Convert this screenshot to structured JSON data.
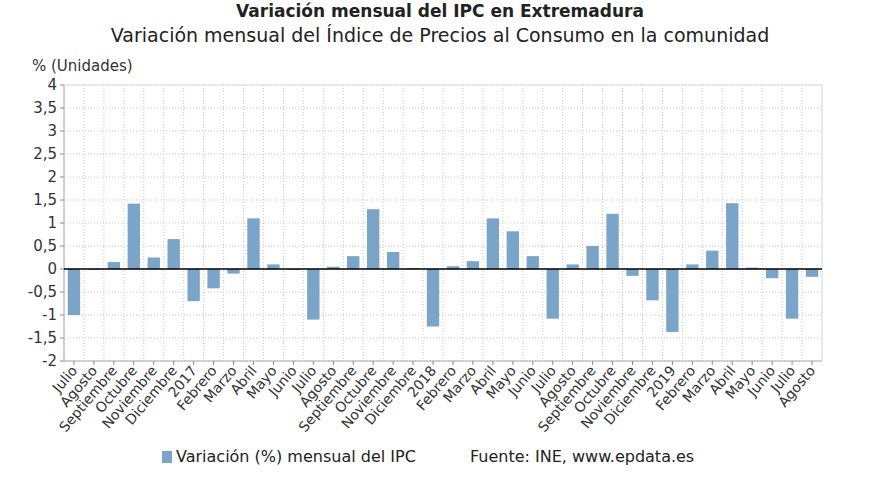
{
  "chart_data": {
    "type": "bar",
    "title": "Variación mensual del IPC en Extremadura",
    "subtitle": "Variación mensual del Índice de Precios al Consumo en la comunidad",
    "y_label": "% (Unidades)",
    "source": "Fuente: INE, www.epdata.es",
    "categories": [
      "Julio",
      "Agosto",
      "Septiembre",
      "Octubre",
      "Noviembre",
      "Diciembre",
      "2017",
      "Febrero",
      "Marzo",
      "Abril",
      "Mayo",
      "Junio",
      "Julio",
      "Agosto",
      "Septiembre",
      "Octubre",
      "Noviembre",
      "Diciembre",
      "2018",
      "Febrero",
      "Marzo",
      "Abril",
      "Mayo",
      "Junio",
      "Julio",
      "Agosto",
      "Septiembre",
      "Octubre",
      "Noviembre",
      "Diciembre",
      "2019",
      "Febrero",
      "Marzo",
      "Abril",
      "Mayo",
      "Junio",
      "Julio",
      "Agosto"
    ],
    "series": [
      {
        "name": "Variación (%) mensual del IPC",
        "color": "#7ba4c9",
        "values": [
          -1.0,
          -0.02,
          0.15,
          1.42,
          0.25,
          0.65,
          -0.7,
          -0.42,
          -0.1,
          1.1,
          0.1,
          -0.02,
          -1.1,
          0.05,
          0.28,
          1.3,
          0.37,
          0.02,
          -1.25,
          0.06,
          0.17,
          1.1,
          0.82,
          0.28,
          -1.08,
          0.1,
          0.5,
          1.2,
          -0.15,
          -0.68,
          -1.37,
          0.1,
          0.4,
          1.43,
          0.03,
          -0.2,
          -1.08,
          -0.17
        ]
      }
    ],
    "ylim": [
      -2,
      4
    ],
    "yticks": [
      -2,
      {
        "value": -1.5,
        "label": "-1,5"
      },
      -1,
      {
        "value": -0.5,
        "label": "-0,5"
      },
      0,
      {
        "value": 0.5,
        "label": "0,5"
      },
      1,
      {
        "value": 1.5,
        "label": "1,5"
      },
      2,
      {
        "value": 2.5,
        "label": "2,5"
      },
      3,
      {
        "value": 3.5,
        "label": "3,5"
      },
      4
    ],
    "grid": true,
    "legend": "bottom"
  }
}
